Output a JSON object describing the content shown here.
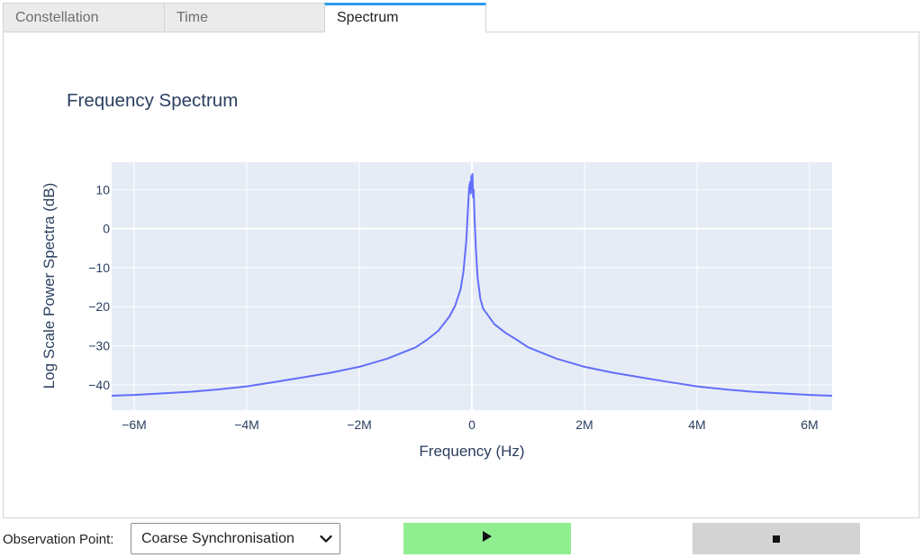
{
  "tabs": [
    {
      "label": "Constellation",
      "active": false
    },
    {
      "label": "Time",
      "active": false
    },
    {
      "label": "Spectrum",
      "active": true
    }
  ],
  "controls": {
    "observation_label": "Observation Point:",
    "observation_value": "Coarse Synchronisation",
    "play_icon": "play-icon",
    "stop_icon": "stop-icon",
    "play_color": "#90ee90",
    "stop_color": "#d3d3d3"
  },
  "chart_data": {
    "type": "line",
    "title": "Frequency Spectrum",
    "xlabel": "Frequency (Hz)",
    "ylabel": "Log Scale Power Spectra (dB)",
    "xlim": [
      -6400000,
      6400000
    ],
    "ylim": [
      -46.5,
      17
    ],
    "grid": true,
    "line_color": "#636efa",
    "plot_bg": "#e5ecf6",
    "x_ticks": [
      {
        "value": -6000000,
        "label": "−6M"
      },
      {
        "value": -4000000,
        "label": "−4M"
      },
      {
        "value": -2000000,
        "label": "−2M"
      },
      {
        "value": 0,
        "label": "0"
      },
      {
        "value": 2000000,
        "label": "2M"
      },
      {
        "value": 4000000,
        "label": "4M"
      },
      {
        "value": 6000000,
        "label": "6M"
      }
    ],
    "y_ticks": [
      {
        "value": 10,
        "label": "10"
      },
      {
        "value": 0,
        "label": "0"
      },
      {
        "value": -10,
        "label": "−10"
      },
      {
        "value": -20,
        "label": "−20"
      },
      {
        "value": -30,
        "label": "−30"
      },
      {
        "value": -40,
        "label": "−40"
      }
    ],
    "series": [
      {
        "x": [
          -6400000,
          -6000000,
          -5500000,
          -5000000,
          -4500000,
          -4000000,
          -3500000,
          -3000000,
          -2500000,
          -2000000,
          -1500000,
          -1000000,
          -800000,
          -600000,
          -400000,
          -300000,
          -200000,
          -150000,
          -100000,
          -70000,
          -50000,
          -30000,
          -20000,
          -10000,
          0,
          10000,
          20000,
          30000,
          50000,
          70000,
          100000,
          150000,
          200000,
          300000,
          400000,
          600000,
          800000,
          1000000,
          1500000,
          2000000,
          2500000,
          3000000,
          3500000,
          4000000,
          4500000,
          5000000,
          5500000,
          6000000,
          6400000
        ],
        "y": [
          -42.8,
          -42.6,
          -42.2,
          -41.8,
          -41.2,
          -40.4,
          -39.3,
          -38.1,
          -36.9,
          -35.4,
          -33.3,
          -30.4,
          -28.5,
          -26.2,
          -22.5,
          -19.8,
          -15.5,
          -11.0,
          -3.0,
          5.0,
          10.5,
          12.0,
          9.0,
          13.5,
          12.5,
          14.0,
          8.0,
          10.0,
          2.0,
          -5.0,
          -12.5,
          -18.0,
          -20.5,
          -22.5,
          -24.5,
          -26.7,
          -28.5,
          -30.4,
          -33.3,
          -35.4,
          -36.9,
          -38.1,
          -39.3,
          -40.4,
          -41.2,
          -41.8,
          -42.2,
          -42.6,
          -42.8
        ]
      }
    ]
  }
}
